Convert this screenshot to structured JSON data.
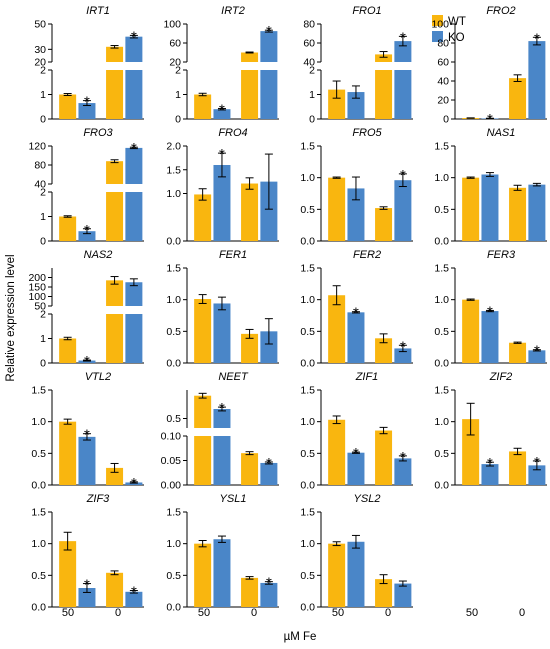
{
  "legend": [
    {
      "label": "WT",
      "color": "#F9B60F"
    },
    {
      "label": "KO",
      "color": "#4A86C8"
    }
  ],
  "ylabel": "Relative expression level",
  "xlabel": "µM Fe",
  "categories": [
    "50",
    "0"
  ],
  "chart_data": [
    {
      "type": "bar",
      "title": "IRT1",
      "categories": [
        "50",
        "0"
      ],
      "broken": true,
      "lower": {
        "ylim": [
          0,
          2
        ],
        "ticks": [
          0,
          1,
          2
        ]
      },
      "upper": {
        "ylim": [
          20,
          50
        ],
        "ticks": [
          20,
          30,
          50
        ]
      },
      "series": [
        {
          "name": "WT",
          "values": [
            1.0,
            32
          ],
          "errors": [
            0.04,
            1.0
          ]
        },
        {
          "name": "KO",
          "values": [
            0.65,
            40
          ],
          "errors": [
            0.1,
            1.0
          ]
        }
      ],
      "significant": {
        "KO": [
          true,
          true
        ]
      }
    },
    {
      "type": "bar",
      "title": "IRT2",
      "categories": [
        "50",
        "0"
      ],
      "broken": true,
      "lower": {
        "ylim": [
          0,
          2
        ],
        "ticks": [
          0,
          1,
          2
        ]
      },
      "upper": {
        "ylim": [
          20,
          100
        ],
        "ticks": [
          20,
          60,
          100
        ]
      },
      "series": [
        {
          "name": "WT",
          "values": [
            1.0,
            40
          ],
          "errors": [
            0.05,
            1.0
          ]
        },
        {
          "name": "KO",
          "values": [
            0.4,
            85
          ],
          "errors": [
            0.03,
            2.0
          ]
        }
      ],
      "significant": {
        "KO": [
          true,
          true
        ]
      }
    },
    {
      "type": "bar",
      "title": "FRO1",
      "categories": [
        "50",
        "0"
      ],
      "broken": true,
      "lower": {
        "ylim": [
          0,
          2
        ],
        "ticks": [
          0,
          1,
          2
        ]
      },
      "upper": {
        "ylim": [
          40,
          80
        ],
        "ticks": [
          40,
          60,
          80
        ]
      },
      "series": [
        {
          "name": "WT",
          "values": [
            1.2,
            48
          ],
          "errors": [
            0.35,
            3.0
          ]
        },
        {
          "name": "KO",
          "values": [
            1.1,
            62
          ],
          "errors": [
            0.25,
            5.0
          ]
        }
      ],
      "significant": {
        "KO": [
          false,
          true
        ]
      }
    },
    {
      "type": "bar",
      "title": "FRO2",
      "categories": [
        "50",
        "0"
      ],
      "broken": false,
      "ylim": [
        0,
        100
      ],
      "ticks": [
        0,
        20,
        40,
        60,
        80,
        100
      ],
      "series": [
        {
          "name": "WT",
          "values": [
            1.0,
            43
          ],
          "errors": [
            0.2,
            3.5
          ]
        },
        {
          "name": "KO",
          "values": [
            0.6,
            82
          ],
          "errors": [
            0.2,
            4.0
          ]
        }
      ],
      "significant": {
        "KO": [
          true,
          true
        ]
      }
    },
    {
      "type": "bar",
      "title": "FRO3",
      "categories": [
        "50",
        "0"
      ],
      "broken": true,
      "lower": {
        "ylim": [
          0,
          2
        ],
        "ticks": [
          0,
          1,
          2
        ]
      },
      "upper": {
        "ylim": [
          40,
          120
        ],
        "ticks": [
          40,
          80,
          120
        ]
      },
      "series": [
        {
          "name": "WT",
          "values": [
            1.0,
            88
          ],
          "errors": [
            0.03,
            3.0
          ]
        },
        {
          "name": "KO",
          "values": [
            0.4,
            116
          ],
          "errors": [
            0.1,
            1.5
          ]
        }
      ],
      "significant": {
        "KO": [
          true,
          true
        ]
      }
    },
    {
      "type": "bar",
      "title": "FRO4",
      "categories": [
        "50",
        "0"
      ],
      "broken": false,
      "ylim": [
        0,
        2.0
      ],
      "ticks": [
        0.0,
        1.0,
        1.5,
        2.0
      ],
      "ticklabels": [
        "0.0",
        "1.0",
        "1.5",
        "2.0"
      ],
      "series": [
        {
          "name": "WT",
          "values": [
            0.98,
            1.21
          ],
          "errors": [
            0.12,
            0.12
          ]
        },
        {
          "name": "KO",
          "values": [
            1.6,
            1.25
          ],
          "errors": [
            0.25,
            0.58
          ]
        }
      ],
      "significant": {
        "KO": [
          true,
          false
        ]
      }
    },
    {
      "type": "bar",
      "title": "FRO5",
      "categories": [
        "50",
        "0"
      ],
      "broken": false,
      "ylim": [
        0,
        1.5
      ],
      "ticks": [
        0.0,
        0.5,
        1.0,
        1.5
      ],
      "ticklabels": [
        "0.0",
        "0.5",
        "1.0",
        "1.5"
      ],
      "series": [
        {
          "name": "WT",
          "values": [
            1.0,
            0.52
          ],
          "errors": [
            0.01,
            0.02
          ]
        },
        {
          "name": "KO",
          "values": [
            0.83,
            0.96
          ],
          "errors": [
            0.18,
            0.1
          ]
        }
      ],
      "significant": {
        "KO": [
          false,
          true
        ]
      }
    },
    {
      "type": "bar",
      "title": "NAS1",
      "categories": [
        "50",
        "0"
      ],
      "broken": false,
      "ylim": [
        0,
        1.5
      ],
      "ticks": [
        0.0,
        0.5,
        1.0,
        1.5
      ],
      "ticklabels": [
        "0.0",
        "0.5",
        "1.0",
        "1.5"
      ],
      "series": [
        {
          "name": "WT",
          "values": [
            1.0,
            0.84
          ],
          "errors": [
            0.01,
            0.04
          ]
        },
        {
          "name": "KO",
          "values": [
            1.05,
            0.89
          ],
          "errors": [
            0.03,
            0.02
          ]
        }
      ],
      "significant": {
        "KO": [
          false,
          false
        ]
      }
    },
    {
      "type": "bar",
      "title": "NAS2",
      "categories": [
        "50",
        "0"
      ],
      "broken": true,
      "lower": {
        "ylim": [
          0,
          2
        ],
        "ticks": [
          0,
          1,
          2
        ]
      },
      "upper": {
        "ylim": [
          50,
          250
        ],
        "ticks": [
          50,
          100,
          150,
          200
        ]
      },
      "series": [
        {
          "name": "WT",
          "values": [
            1.0,
            185
          ],
          "errors": [
            0.05,
            20
          ]
        },
        {
          "name": "KO",
          "values": [
            0.1,
            175
          ],
          "errors": [
            0.02,
            18
          ]
        }
      ],
      "significant": {
        "KO": [
          true,
          false
        ]
      }
    },
    {
      "type": "bar",
      "title": "FER1",
      "categories": [
        "50",
        "0"
      ],
      "broken": false,
      "ylim": [
        0,
        1.5
      ],
      "ticks": [
        0.0,
        0.5,
        1.0,
        1.5
      ],
      "ticklabels": [
        "0.0",
        "0.5",
        "1.0",
        "1.5"
      ],
      "series": [
        {
          "name": "WT",
          "values": [
            1.01,
            0.46
          ],
          "errors": [
            0.07,
            0.07
          ]
        },
        {
          "name": "KO",
          "values": [
            0.94,
            0.5
          ],
          "errors": [
            0.1,
            0.2
          ]
        }
      ],
      "significant": {
        "KO": [
          false,
          false
        ]
      }
    },
    {
      "type": "bar",
      "title": "FER2",
      "categories": [
        "50",
        "0"
      ],
      "broken": false,
      "ylim": [
        0,
        1.5
      ],
      "ticks": [
        0.0,
        0.5,
        1.0,
        1.5
      ],
      "ticklabels": [
        "0.0",
        "0.5",
        "1.0",
        "1.5"
      ],
      "series": [
        {
          "name": "WT",
          "values": [
            1.07,
            0.39
          ],
          "errors": [
            0.15,
            0.07
          ]
        },
        {
          "name": "KO",
          "values": [
            0.8,
            0.23
          ],
          "errors": [
            0.01,
            0.05
          ]
        }
      ],
      "significant": {
        "KO": [
          true,
          true
        ]
      }
    },
    {
      "type": "bar",
      "title": "FER3",
      "categories": [
        "50",
        "0"
      ],
      "broken": false,
      "ylim": [
        0,
        1.5
      ],
      "ticks": [
        0.0,
        0.5,
        1.0,
        1.5
      ],
      "ticklabels": [
        "0.0",
        "0.5",
        "1.0",
        "1.5"
      ],
      "series": [
        {
          "name": "WT",
          "values": [
            1.0,
            0.32
          ],
          "errors": [
            0.01,
            0.01
          ]
        },
        {
          "name": "KO",
          "values": [
            0.82,
            0.2
          ],
          "errors": [
            0.01,
            0.01
          ]
        }
      ],
      "significant": {
        "KO": [
          true,
          true
        ]
      }
    },
    {
      "type": "bar",
      "title": "VTL2",
      "categories": [
        "50",
        "0"
      ],
      "broken": false,
      "ylim": [
        0,
        1.5
      ],
      "ticks": [
        0.0,
        0.5,
        1.0,
        1.5
      ],
      "ticklabels": [
        "0.0",
        "0.5",
        "1.0",
        "1.5"
      ],
      "series": [
        {
          "name": "WT",
          "values": [
            1.0,
            0.27
          ],
          "errors": [
            0.04,
            0.07
          ]
        },
        {
          "name": "KO",
          "values": [
            0.76,
            0.04
          ],
          "errors": [
            0.05,
            0.01
          ]
        }
      ],
      "significant": {
        "KO": [
          true,
          true
        ]
      }
    },
    {
      "type": "bar",
      "title": "NEET",
      "categories": [
        "50",
        "0"
      ],
      "broken": true,
      "lower": {
        "ylim": [
          0,
          0.1
        ],
        "ticks": [
          0.0,
          0.05,
          0.1
        ],
        "ticklabels": [
          "0.00",
          "0.05",
          "0.10"
        ]
      },
      "upper": {
        "ylim": [
          0.3,
          1.1
        ],
        "ticks": [
          0.5
        ],
        "ticklabels": [
          "0.5"
        ]
      },
      "series": [
        {
          "name": "WT",
          "values": [
            0.98,
            0.065
          ],
          "errors": [
            0.05,
            0.003
          ]
        },
        {
          "name": "KO",
          "values": [
            0.7,
            0.045
          ],
          "errors": [
            0.04,
            0.002
          ]
        }
      ],
      "significant": {
        "KO": [
          true,
          true
        ]
      }
    },
    {
      "type": "bar",
      "title": "ZIF1",
      "categories": [
        "50",
        "0"
      ],
      "broken": false,
      "ylim": [
        0,
        1.5
      ],
      "ticks": [
        0.0,
        0.5,
        1.0,
        1.5
      ],
      "ticklabels": [
        "0.0",
        "0.5",
        "1.0",
        "1.5"
      ],
      "series": [
        {
          "name": "WT",
          "values": [
            1.03,
            0.86
          ],
          "errors": [
            0.06,
            0.05
          ]
        },
        {
          "name": "KO",
          "values": [
            0.51,
            0.42
          ],
          "errors": [
            0.01,
            0.04
          ]
        }
      ],
      "significant": {
        "KO": [
          true,
          true
        ]
      }
    },
    {
      "type": "bar",
      "title": "ZIF2",
      "categories": [
        "50",
        "0"
      ],
      "broken": false,
      "ylim": [
        0,
        1.5
      ],
      "ticks": [
        0.0,
        0.5,
        1.0,
        1.5
      ],
      "ticklabels": [
        "0.0",
        "0.5",
        "1.0",
        "1.5"
      ],
      "series": [
        {
          "name": "WT",
          "values": [
            1.04,
            0.53
          ],
          "errors": [
            0.25,
            0.05
          ]
        },
        {
          "name": "KO",
          "values": [
            0.33,
            0.31
          ],
          "errors": [
            0.03,
            0.07
          ]
        }
      ],
      "significant": {
        "KO": [
          true,
          true
        ]
      }
    },
    {
      "type": "bar",
      "title": "ZIF3",
      "categories": [
        "50",
        "0"
      ],
      "broken": false,
      "ylim": [
        0,
        1.5
      ],
      "ticks": [
        0.0,
        0.5,
        1.0,
        1.5
      ],
      "ticklabels": [
        "0.0",
        "0.5",
        "1.0",
        "1.5"
      ],
      "series": [
        {
          "name": "WT",
          "values": [
            1.04,
            0.54
          ],
          "errors": [
            0.14,
            0.03
          ]
        },
        {
          "name": "KO",
          "values": [
            0.3,
            0.24
          ],
          "errors": [
            0.07,
            0.02
          ]
        }
      ],
      "significant": {
        "KO": [
          true,
          true
        ]
      }
    },
    {
      "type": "bar",
      "title": "YSL1",
      "categories": [
        "50",
        "0"
      ],
      "broken": false,
      "ylim": [
        0,
        1.5
      ],
      "ticks": [
        0.0,
        0.5,
        1.0,
        1.5
      ],
      "ticklabels": [
        "0.0",
        "0.5",
        "1.0",
        "1.5"
      ],
      "series": [
        {
          "name": "WT",
          "values": [
            1.0,
            0.46
          ],
          "errors": [
            0.05,
            0.02
          ]
        },
        {
          "name": "KO",
          "values": [
            1.07,
            0.38
          ],
          "errors": [
            0.05,
            0.02
          ]
        }
      ],
      "significant": {
        "KO": [
          false,
          true
        ]
      }
    },
    {
      "type": "bar",
      "title": "YSL2",
      "categories": [
        "50",
        "0"
      ],
      "broken": false,
      "ylim": [
        0,
        1.5
      ],
      "ticks": [
        0.0,
        0.5,
        1.0,
        1.5
      ],
      "ticklabels": [
        "0.0",
        "0.5",
        "1.0",
        "1.5"
      ],
      "series": [
        {
          "name": "WT",
          "values": [
            1.0,
            0.44
          ],
          "errors": [
            0.03,
            0.07
          ]
        },
        {
          "name": "KO",
          "values": [
            1.03,
            0.37
          ],
          "errors": [
            0.1,
            0.04
          ]
        }
      ],
      "significant": {
        "KO": [
          false,
          false
        ]
      }
    }
  ]
}
